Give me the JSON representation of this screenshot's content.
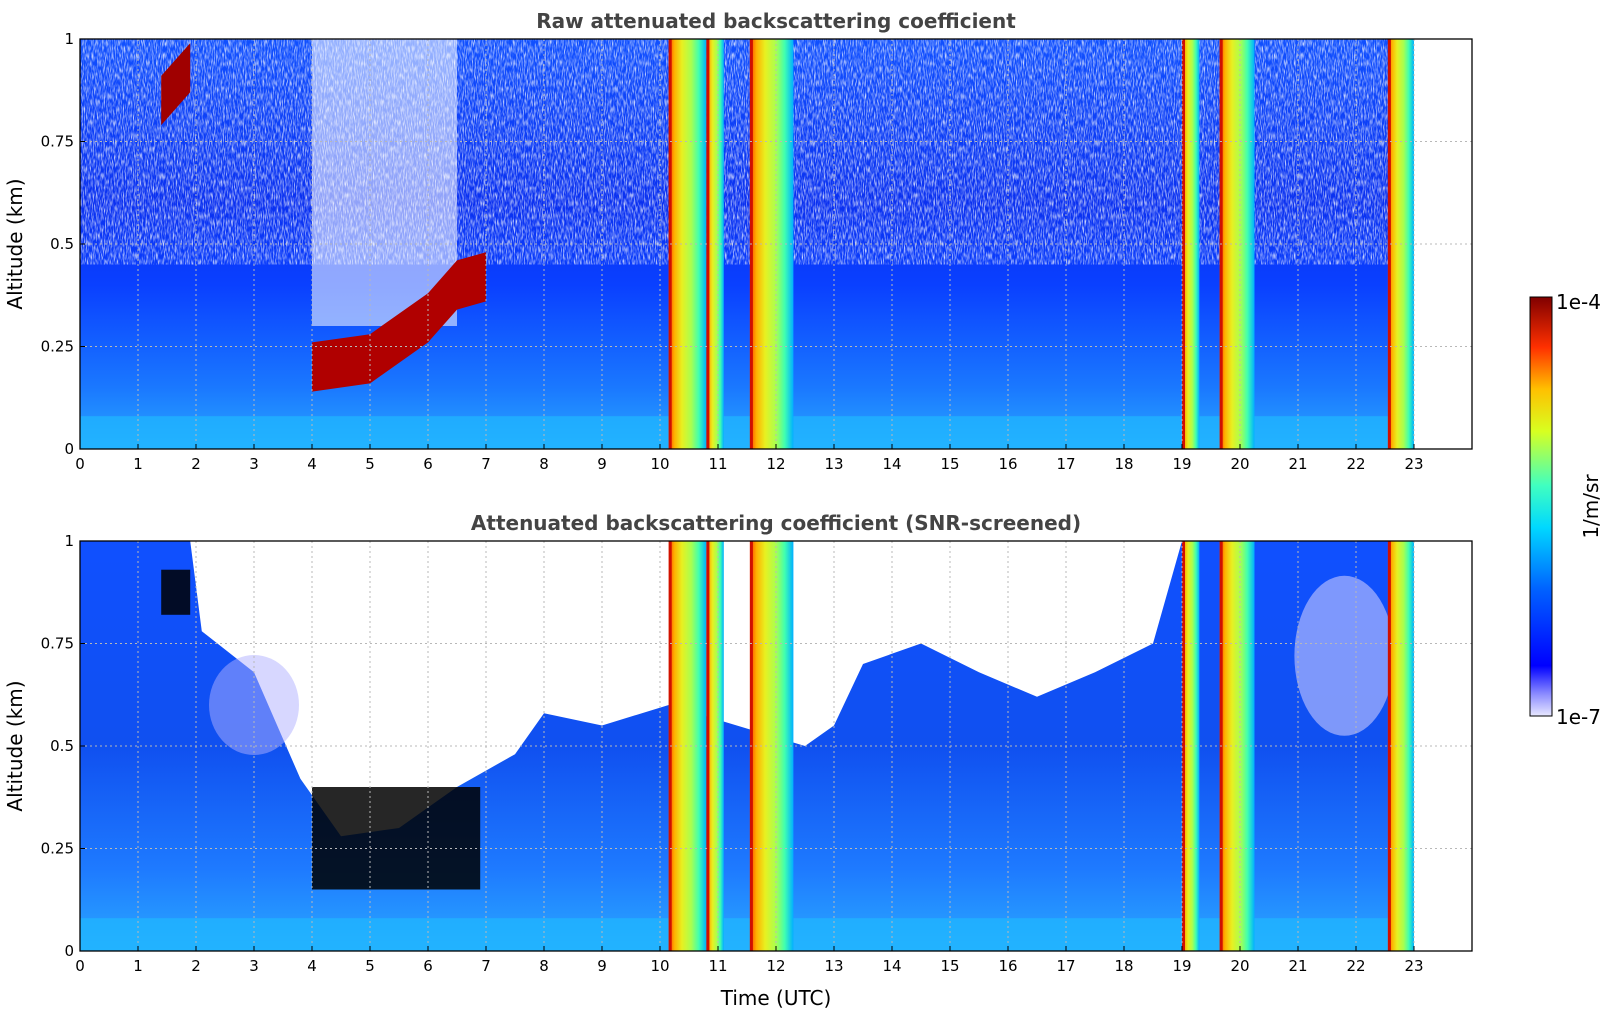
{
  "chart_data": [
    {
      "type": "heatmap",
      "title": "Raw attenuated backscattering coefficient",
      "xlabel": "",
      "ylabel": "Altitude (km)",
      "xlim": [
        0,
        24
      ],
      "ylim": [
        0,
        1
      ],
      "xticks": [
        "0",
        "1",
        "2",
        "3",
        "4",
        "5",
        "6",
        "7",
        "8",
        "9",
        "10",
        "11",
        "12",
        "13",
        "14",
        "15",
        "16",
        "17",
        "18",
        "19",
        "20",
        "21",
        "22",
        "23"
      ],
      "yticks": [
        "0",
        "0.25",
        "0.5",
        "0.75",
        "1"
      ],
      "grid": true,
      "data_end_hour": 23,
      "aerosol_layer": [
        {
          "x": 4.0,
          "y": 0.2
        },
        {
          "x": 5.0,
          "y": 0.22
        },
        {
          "x": 6.0,
          "y": 0.32
        },
        {
          "x": 6.5,
          "y": 0.4
        },
        {
          "x": 7.0,
          "y": 0.42
        }
      ],
      "upper_layer": [
        {
          "x": 1.4,
          "y": 0.85
        },
        {
          "x": 1.9,
          "y": 0.93
        }
      ],
      "precipitation_bands": [
        {
          "start": 10.15,
          "end": 10.8
        },
        {
          "start": 10.8,
          "end": 11.1
        },
        {
          "start": 11.55,
          "end": 12.3
        },
        {
          "start": 19.0,
          "end": 19.3
        },
        {
          "start": 19.65,
          "end": 20.25
        },
        {
          "start": 22.55,
          "end": 23.0
        }
      ]
    },
    {
      "type": "heatmap",
      "title": "Attenuated backscattering coefficient (SNR-screened)",
      "xlabel": "Time (UTC)",
      "ylabel": "Altitude (km)",
      "xlim": [
        0,
        24
      ],
      "ylim": [
        0,
        1
      ],
      "xticks": [
        "0",
        "1",
        "2",
        "3",
        "4",
        "5",
        "6",
        "7",
        "8",
        "9",
        "10",
        "11",
        "12",
        "13",
        "14",
        "15",
        "16",
        "17",
        "18",
        "19",
        "20",
        "21",
        "22",
        "23"
      ],
      "yticks": [
        "0",
        "0.25",
        "0.5",
        "0.75",
        "1"
      ],
      "grid": true,
      "data_end_hour": 23,
      "screened_top_km": [
        {
          "x": 0.0,
          "y": 1.0
        },
        {
          "x": 1.9,
          "y": 1.0
        },
        {
          "x": 2.1,
          "y": 0.78
        },
        {
          "x": 3.0,
          "y": 0.68
        },
        {
          "x": 3.8,
          "y": 0.42
        },
        {
          "x": 4.5,
          "y": 0.28
        },
        {
          "x": 5.5,
          "y": 0.3
        },
        {
          "x": 6.5,
          "y": 0.4
        },
        {
          "x": 7.5,
          "y": 0.48
        },
        {
          "x": 8.0,
          "y": 0.58
        },
        {
          "x": 9.0,
          "y": 0.55
        },
        {
          "x": 10.15,
          "y": 0.6
        },
        {
          "x": 12.5,
          "y": 0.5
        },
        {
          "x": 13.0,
          "y": 0.55
        },
        {
          "x": 13.5,
          "y": 0.7
        },
        {
          "x": 14.5,
          "y": 0.75
        },
        {
          "x": 15.5,
          "y": 0.68
        },
        {
          "x": 16.5,
          "y": 0.62
        },
        {
          "x": 17.5,
          "y": 0.68
        },
        {
          "x": 18.5,
          "y": 0.75
        },
        {
          "x": 19.0,
          "y": 1.0
        },
        {
          "x": 23.0,
          "y": 1.0
        }
      ],
      "saturated_regions": [
        {
          "x": [
            4.0,
            6.9
          ],
          "y": [
            0.15,
            0.4
          ],
          "color": "#000000"
        },
        {
          "x": [
            1.4,
            1.9
          ],
          "y": [
            0.82,
            0.93
          ],
          "color": "#000000"
        }
      ]
    }
  ],
  "colorbar": {
    "label": "1/m/sr",
    "max_label": "1e-4",
    "min_label": "1e-7",
    "scale": "log",
    "colors": [
      "#e8e8ff",
      "#c8c8ff",
      "#9090ff",
      "#3030ff",
      "#0000ff",
      "#0050ff",
      "#00a0ff",
      "#00e0ff",
      "#30ffd0",
      "#80ff80",
      "#d0ff30",
      "#ffe000",
      "#ffa000",
      "#ff5000",
      "#e00000",
      "#800000"
    ]
  }
}
